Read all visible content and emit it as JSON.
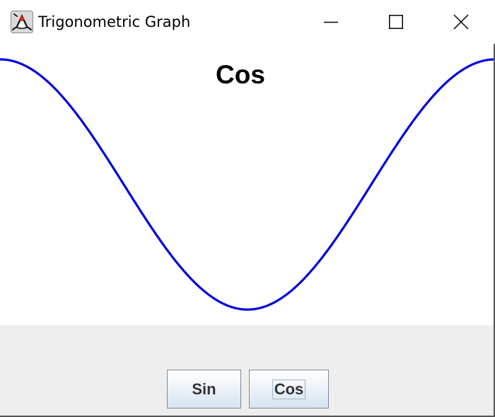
{
  "window": {
    "title": "Trigonometric Graph",
    "icon": "java-duke-icon",
    "controls": {
      "minimize": "minimize-icon",
      "maximize": "maximize-icon",
      "close": "close-icon"
    }
  },
  "graph": {
    "title": "Cos",
    "line_color": "#0000dd",
    "function": "cos",
    "phase_start_radians": 0.0,
    "phase_end_radians": 6.283
  },
  "buttons": {
    "sin_label": "Sin",
    "cos_label": "Cos",
    "focused": "Cos"
  },
  "colors": {
    "button_panel_bg": "#eeeeee",
    "plot_bg": "#ffffff",
    "button_border": "#7a8a99",
    "button_text": "#333333"
  }
}
